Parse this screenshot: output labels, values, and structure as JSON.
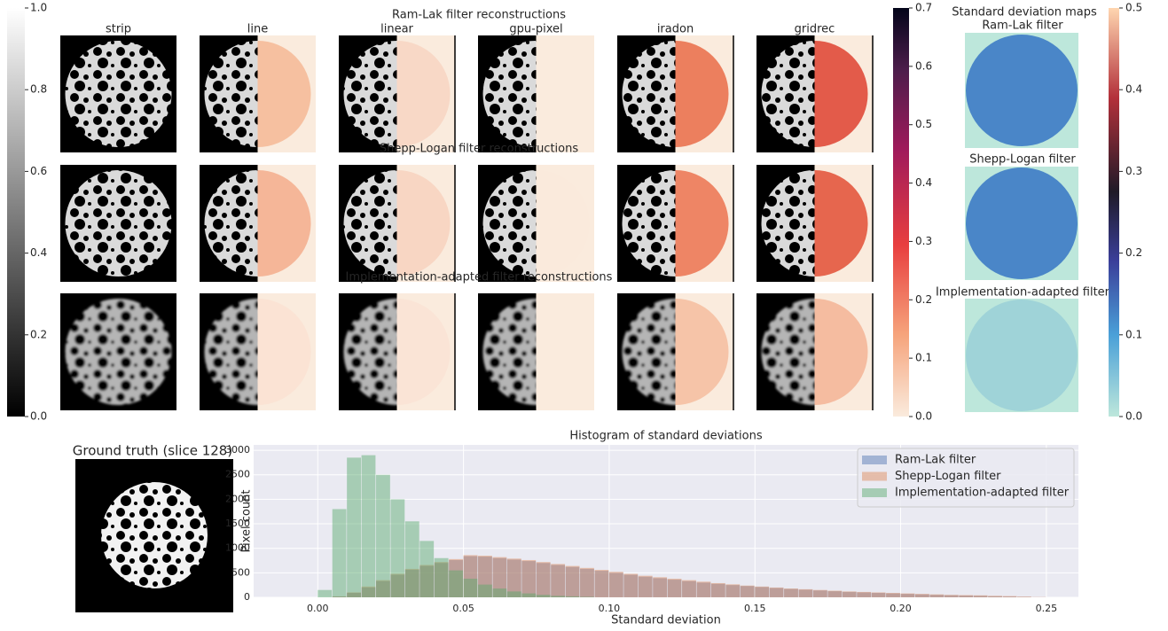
{
  "figure": {
    "row_titles": [
      "Ram-Lak filter reconstructions",
      "Shepp-Logan filter reconstructions",
      "Implementation-adapted filter reconstructions"
    ],
    "column_titles": [
      "strip",
      "line",
      "linear",
      "gpu-pixel",
      "iradon",
      "gridrec"
    ],
    "std_maps_title": "Standard deviation maps",
    "std_map_titles": [
      "Ram-Lak filter",
      "Shepp-Logan filter",
      "Implementation-adapted filter"
    ],
    "ground_truth_title": "Ground truth (slice 128)",
    "colorbars": [
      {
        "ylim": [
          0,
          1
        ],
        "yticks": [
          {
            "value": 0,
            "label": "0.0"
          },
          {
            "value": 0.2,
            "label": "0.2"
          },
          {
            "value": 0.4,
            "label": "0.4"
          },
          {
            "value": 0.6,
            "label": "0.6"
          },
          {
            "value": 0.8,
            "label": "0.8"
          },
          {
            "value": 1,
            "label": "1.0"
          }
        ]
      },
      {
        "ylim": [
          0,
          0.7
        ],
        "yticks": [
          {
            "value": 0,
            "label": "0.0"
          },
          0.1,
          0.2,
          0.3,
          0.4,
          0.5,
          0.6,
          0.7
        ]
      },
      {
        "ylim": [
          0,
          0.5
        ],
        "yticks": [
          {
            "value": 0,
            "label": "0.0"
          },
          0.1,
          0.2,
          0.3,
          0.4,
          0.5
        ]
      }
    ]
  },
  "chart_data": {
    "type": "histogram",
    "title": "Histogram of standard deviations",
    "xlabel": "Standard deviation",
    "ylabel": "Pixel count",
    "bins": [
      0,
      0.005,
      0.01,
      0.015,
      0.02,
      0.025,
      0.03,
      0.035,
      0.04,
      0.045,
      0.05,
      0.055,
      0.06,
      0.065,
      0.07,
      0.075,
      0.08,
      0.085,
      0.09,
      0.095,
      0.1,
      0.105,
      0.11,
      0.115,
      0.12,
      0.125,
      0.13,
      0.135,
      0.14,
      0.145,
      0.15,
      0.155,
      0.16,
      0.165,
      0.17,
      0.175,
      0.18,
      0.185,
      0.19,
      0.195,
      0.2,
      0.205,
      0.21,
      0.215,
      0.22,
      0.225,
      0.23,
      0.235,
      0.24,
      0.245,
      0.25
    ],
    "series": [
      {
        "name": "Ram-Lak filter",
        "color": "#4c72b0",
        "values": [
          0,
          15,
          90,
          200,
          330,
          460,
          560,
          640,
          700,
          760,
          840,
          830,
          800,
          770,
          740,
          700,
          660,
          620,
          580,
          540,
          500,
          460,
          420,
          390,
          360,
          330,
          300,
          275,
          250,
          230,
          210,
          190,
          170,
          155,
          140,
          125,
          110,
          100,
          90,
          80,
          70,
          60,
          50,
          42,
          36,
          30,
          22,
          15,
          8,
          2
        ]
      },
      {
        "name": "Shepp-Logan filter",
        "color": "#dd8452",
        "values": [
          0,
          20,
          100,
          220,
          350,
          480,
          580,
          660,
          720,
          780,
          860,
          850,
          820,
          790,
          760,
          720,
          680,
          640,
          600,
          560,
          520,
          480,
          440,
          410,
          380,
          350,
          320,
          290,
          265,
          240,
          220,
          200,
          180,
          165,
          150,
          135,
          120,
          110,
          100,
          90,
          80,
          70,
          60,
          50,
          45,
          40,
          30,
          25,
          15,
          5
        ]
      },
      {
        "name": "Implementation-adapted filter",
        "color": "#55a868",
        "values": [
          150,
          1800,
          2850,
          2900,
          2500,
          2000,
          1550,
          1150,
          800,
          550,
          380,
          260,
          180,
          120,
          80,
          50,
          30,
          20,
          10,
          0,
          0,
          0,
          0,
          0,
          0,
          0,
          0,
          0,
          0,
          0,
          0,
          0,
          0,
          0,
          0,
          0,
          0,
          0,
          0,
          0,
          0,
          0,
          0,
          0,
          0,
          0,
          0,
          0,
          0,
          0
        ]
      }
    ],
    "xlim": [
      -0.022,
      0.261
    ],
    "ylim": [
      0,
      3110
    ],
    "xticks": [
      {
        "value": 0,
        "label": "0.00"
      },
      {
        "value": 0.05,
        "label": "0.05"
      },
      {
        "value": 0.1,
        "label": "0.10"
      },
      {
        "value": 0.15,
        "label": "0.15"
      },
      {
        "value": 0.2,
        "label": "0.20"
      },
      {
        "value": 0.25,
        "label": "0.25"
      }
    ],
    "yticks": [
      0,
      500,
      1000,
      1500,
      2000,
      2500,
      3000
    ],
    "grid": true,
    "legend": "upper right"
  }
}
